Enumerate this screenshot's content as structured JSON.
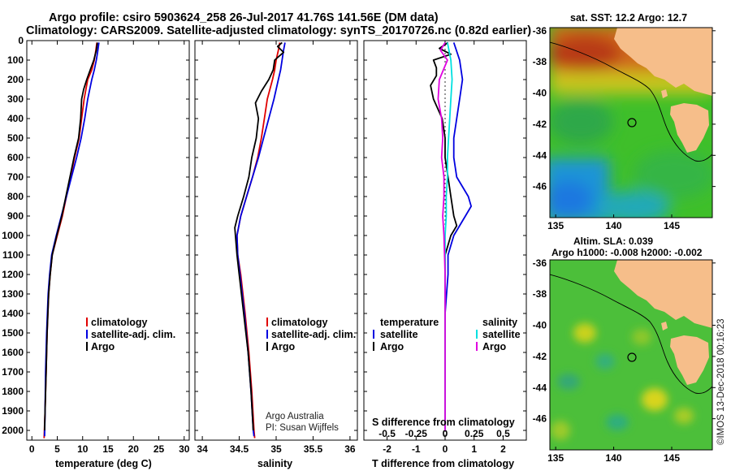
{
  "header": {
    "line1": "Argo profile: csiro 5903624_258 26-Jul-2017 41.76S 141.56E (DM data)",
    "line2": "Climatology: CARS2009. Satellite-adjusted climatology: synTS_20170726.nc (0.82d earlier)"
  },
  "colors": {
    "climatology": "#e00000",
    "satellite": "#0000e0",
    "argo": "#000000",
    "sal_satellite": "#00e0e0",
    "sal_argo": "#e000e0",
    "land": "#f6be8a"
  },
  "chart_data": [
    {
      "type": "line",
      "id": "temperature",
      "xlabel": "temperature (deg C)",
      "ylim": [
        2050,
        0
      ],
      "xlim": [
        -1,
        31
      ],
      "xticks": [
        "0",
        "5",
        "10",
        "15",
        "20",
        "25",
        "30"
      ],
      "yticks": [
        "0",
        "100",
        "200",
        "300",
        "400",
        "500",
        "600",
        "700",
        "800",
        "900",
        "1000",
        "1100",
        "1200",
        "1300",
        "1400",
        "1500",
        "1600",
        "1700",
        "1800",
        "1900",
        "2000"
      ],
      "legend": [
        "climatology",
        "satellite-adj. clim.",
        "Argo"
      ],
      "series": [
        {
          "name": "climatology",
          "depth": [
            10,
            50,
            100,
            150,
            200,
            300,
            400,
            500,
            600,
            700,
            800,
            900,
            1000,
            1100,
            1200,
            1300,
            1500,
            1700,
            1900,
            2040
          ],
          "values": [
            12.8,
            12.6,
            12.3,
            11.8,
            11.0,
            10.3,
            9.8,
            9.3,
            8.4,
            7.6,
            6.8,
            6.0,
            5.0,
            4.0,
            3.6,
            3.3,
            3.0,
            2.8,
            2.6,
            2.4
          ]
        },
        {
          "name": "satellite-adj. clim.",
          "depth": [
            10,
            50,
            100,
            150,
            200,
            300,
            400,
            500,
            600,
            700,
            800,
            900,
            1000,
            1100,
            1200,
            1300,
            1500,
            1700,
            1900,
            2030
          ],
          "values": [
            13.2,
            13.0,
            12.7,
            12.3,
            11.8,
            11.0,
            10.4,
            9.7,
            8.8,
            7.8,
            6.8,
            5.8,
            4.8,
            3.9,
            3.5,
            3.2,
            2.9,
            2.7,
            2.6,
            2.5
          ]
        },
        {
          "name": "Argo",
          "depth": [
            10,
            50,
            100,
            150,
            200,
            250,
            300,
            400,
            500,
            600,
            700,
            800,
            900,
            1000,
            1100,
            1200,
            1300,
            1500,
            1700,
            1900,
            2000
          ],
          "values": [
            12.9,
            12.7,
            12.2,
            11.5,
            10.8,
            10.2,
            9.8,
            9.6,
            9.2,
            8.3,
            7.5,
            6.7,
            5.9,
            4.9,
            4.0,
            3.6,
            3.3,
            3.0,
            2.8,
            2.6,
            2.5
          ]
        }
      ]
    },
    {
      "type": "line",
      "id": "salinity",
      "xlabel": "salinity",
      "ylim": [
        2050,
        0
      ],
      "xlim": [
        33.9,
        36.1
      ],
      "xticks": [
        "34",
        "34.5",
        "35",
        "35.5",
        "36"
      ],
      "legend": [
        "climatology",
        "satellite-adj. clim.",
        "Argo"
      ],
      "annotation": [
        "Argo Australia",
        "PI: Susan Wijffels"
      ],
      "series": [
        {
          "name": "climatology",
          "depth": [
            10,
            50,
            100,
            150,
            200,
            300,
            400,
            500,
            600,
            700,
            800,
            900,
            1000,
            1100,
            1200,
            1400,
            1600,
            1800,
            2000,
            2040
          ],
          "values": [
            35.05,
            35.03,
            35.0,
            34.98,
            34.95,
            34.88,
            34.84,
            34.8,
            34.75,
            34.68,
            34.6,
            34.52,
            34.47,
            34.48,
            34.52,
            34.58,
            34.63,
            34.67,
            34.7,
            34.71
          ]
        },
        {
          "name": "satellite-adj. clim.",
          "depth": [
            10,
            50,
            100,
            150,
            200,
            300,
            400,
            500,
            600,
            700,
            800,
            900,
            1000,
            1100,
            1200,
            1400,
            1600,
            1800,
            2000,
            2030
          ],
          "values": [
            35.12,
            35.1,
            35.08,
            35.06,
            35.03,
            34.97,
            34.9,
            34.83,
            34.76,
            34.68,
            34.6,
            34.52,
            34.47,
            34.48,
            34.51,
            34.57,
            34.62,
            34.66,
            34.69,
            34.7
          ]
        },
        {
          "name": "Argo",
          "depth": [
            10,
            30,
            60,
            100,
            150,
            200,
            260,
            320,
            400,
            500,
            600,
            700,
            800,
            900,
            960,
            1100,
            1200,
            1400,
            1600,
            1800,
            2000
          ],
          "values": [
            35.08,
            35.02,
            35.1,
            34.98,
            34.96,
            34.9,
            34.8,
            34.72,
            34.76,
            34.73,
            34.67,
            34.63,
            34.56,
            34.48,
            34.44,
            34.47,
            34.5,
            34.56,
            34.62,
            34.66,
            34.69
          ]
        }
      ]
    },
    {
      "type": "line",
      "id": "difference",
      "xlabel": "T difference from climatology",
      "xlabel_top": "S difference from climatology",
      "ylim": [
        2050,
        0
      ],
      "xlim": [
        -2.8,
        2.8
      ],
      "xticks": [
        "-2",
        "-1",
        "0",
        "1",
        "2"
      ],
      "xticks_top": [
        "-0.5",
        "-0.25",
        "0",
        "0.25",
        "0.5"
      ],
      "legend_left_title": "temperature",
      "legend_right_title": "salinity",
      "legend_left": [
        "satellite",
        "Argo"
      ],
      "legend_right": [
        "satellite",
        "Argo"
      ],
      "series": [
        {
          "name": "temperature satellite",
          "depth": [
            10,
            100,
            200,
            300,
            400,
            500,
            600,
            700,
            800,
            850,
            900,
            1000,
            1100,
            1200,
            1400,
            1600,
            1800,
            2000
          ],
          "values": [
            0.3,
            0.5,
            0.6,
            0.5,
            0.4,
            0.3,
            0.3,
            0.4,
            0.8,
            0.9,
            0.7,
            0.3,
            0.1,
            0.1,
            0.0,
            0.0,
            0.0,
            0.0
          ]
        },
        {
          "name": "temperature Argo",
          "depth": [
            10,
            40,
            70,
            100,
            140,
            180,
            230,
            300,
            400,
            500,
            600,
            700,
            800,
            900,
            950,
            1000,
            1100,
            1200,
            1400,
            1600,
            1800,
            2000
          ],
          "values": [
            0.1,
            -0.2,
            0.2,
            -0.4,
            -0.3,
            -0.3,
            -0.5,
            -0.4,
            -0.1,
            0.0,
            0.0,
            0.1,
            0.2,
            0.3,
            0.4,
            0.2,
            0.0,
            0.0,
            0.0,
            0.0,
            0.0,
            0.0
          ]
        },
        {
          "name": "salinity satellite",
          "depth": [
            10,
            100,
            200,
            300,
            400,
            500,
            600,
            700,
            800,
            900,
            1000,
            1200,
            1400,
            1600,
            1800,
            2000
          ],
          "values": [
            0.02,
            0.05,
            0.06,
            0.05,
            0.04,
            0.03,
            0.02,
            0.02,
            0.01,
            0.01,
            0.0,
            0.0,
            0.0,
            0.0,
            0.0,
            0.0
          ]
        },
        {
          "name": "salinity Argo",
          "depth": [
            10,
            50,
            100,
            200,
            300,
            400,
            500,
            600,
            700,
            800,
            900,
            1000,
            1200,
            1400,
            1600,
            1800,
            2000
          ],
          "values": [
            0.0,
            -0.04,
            0.02,
            -0.05,
            -0.06,
            -0.03,
            -0.02,
            -0.03,
            -0.01,
            -0.01,
            -0.02,
            -0.01,
            0.0,
            0.0,
            0.0,
            0.0,
            0.0
          ]
        }
      ]
    },
    {
      "type": "heatmap",
      "id": "sst-map",
      "title": "sat. SST: 12.2  Argo: 12.7",
      "xlim": [
        134.5,
        148.5
      ],
      "ylim": [
        -48,
        -35.8
      ],
      "xticks": [
        "135",
        "140",
        "145"
      ],
      "yticks": [
        "-36",
        "-38",
        "-40",
        "-42",
        "-44",
        "-46"
      ],
      "marker": [
        141.56,
        -41.76
      ]
    },
    {
      "type": "heatmap",
      "id": "sla-map",
      "title": "Altim. SLA: 0.039",
      "subtitle": "Argo h1000: -0.008  h2000: -0.002",
      "xlim": [
        134.5,
        148.5
      ],
      "ylim": [
        -48,
        -35.8
      ],
      "xticks": [
        "135",
        "140",
        "145"
      ],
      "yticks": [
        "-36",
        "-38",
        "-40",
        "-42",
        "-44",
        "-46"
      ],
      "marker": [
        141.56,
        -41.76
      ]
    }
  ],
  "credit": "©IMOS 13-Dec-2018 00:16:23"
}
